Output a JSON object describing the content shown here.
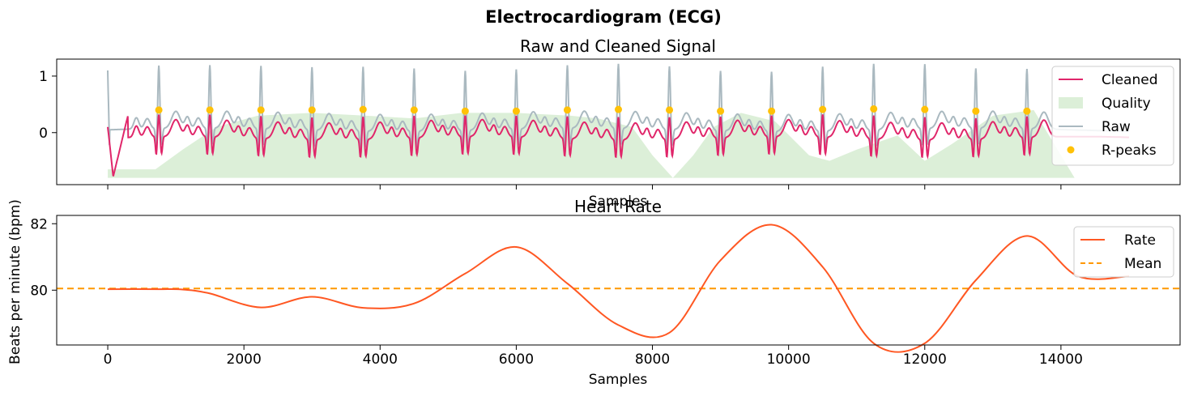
{
  "suptitle": "Electrocardiogram (ECG)",
  "colors": {
    "cleaned": "#e0266a",
    "quality": "#dcefd8",
    "raw": "#aab9c0",
    "rpeaks": "#ffc107",
    "rate": "#ff5722",
    "mean": "#ff9800"
  },
  "chart_data": [
    {
      "type": "line",
      "title": "Raw and Cleaned Signal",
      "xlabel": "Samples",
      "ylabel": "",
      "xlim": [
        -750,
        15750
      ],
      "ylim": [
        -0.92,
        1.3
      ],
      "yticks": [
        0,
        1
      ],
      "xticks_labeled": false,
      "legend_position": "upper right",
      "legend": [
        "Cleaned",
        "Quality",
        "Raw",
        "R-peaks"
      ],
      "r_peaks": {
        "x": [
          750,
          1500,
          2250,
          3000,
          3750,
          4500,
          5250,
          6000,
          6750,
          7500,
          8250,
          9000,
          9750,
          10500,
          11250,
          12000,
          12750,
          13500
        ],
        "y": [
          0.4,
          0.4,
          0.4,
          0.4,
          0.41,
          0.4,
          0.38,
          0.38,
          0.4,
          0.41,
          0.4,
          0.38,
          0.38,
          0.41,
          0.42,
          0.41,
          0.38,
          0.38
        ]
      },
      "quality_band": {
        "x": [
          0,
          700,
          1100,
          1600,
          2200,
          3000,
          3800,
          4500,
          5200,
          6000,
          6800,
          7200,
          7700,
          8000,
          8300,
          8600,
          8900,
          9300,
          9800,
          10300,
          10600,
          11000,
          11600,
          12000,
          12400,
          13000,
          13600,
          14200,
          15000
        ],
        "y": [
          -0.65,
          -0.65,
          -0.3,
          0.1,
          0.3,
          0.35,
          0.3,
          0.25,
          0.35,
          0.35,
          0.3,
          0.25,
          0.1,
          -0.4,
          -0.8,
          -0.4,
          0.1,
          0.35,
          0.2,
          -0.4,
          -0.5,
          -0.3,
          -0.05,
          -0.5,
          -0.2,
          0.3,
          0.4,
          -0.8,
          -0.8
        ],
        "baseline": -0.8
      },
      "beat_interval": 750,
      "first_peak": 750
    },
    {
      "type": "line",
      "title": "Heart Rate",
      "xlabel": "Samples",
      "ylabel": "Beats per minute (bpm)",
      "xlim": [
        -750,
        15750
      ],
      "ylim": [
        78.35,
        82.25
      ],
      "xticks": [
        0,
        2000,
        4000,
        6000,
        8000,
        10000,
        12000,
        14000
      ],
      "yticks": [
        80,
        82
      ],
      "legend_position": "upper right",
      "legend": [
        "Rate",
        "Mean"
      ],
      "mean": 80.05,
      "series": [
        {
          "name": "Rate",
          "x": [
            0,
            750,
            1100,
            1500,
            2250,
            3000,
            3750,
            4500,
            5250,
            6000,
            6750,
            7500,
            8250,
            9000,
            9750,
            10500,
            11250,
            12000,
            12750,
            13500,
            14250,
            15000
          ],
          "y": [
            80.03,
            80.03,
            80.02,
            79.9,
            79.48,
            79.8,
            79.47,
            79.6,
            80.5,
            81.3,
            80.2,
            78.95,
            78.72,
            80.9,
            81.97,
            80.7,
            78.4,
            78.4,
            80.3,
            81.63,
            80.42,
            80.42
          ]
        }
      ]
    }
  ]
}
